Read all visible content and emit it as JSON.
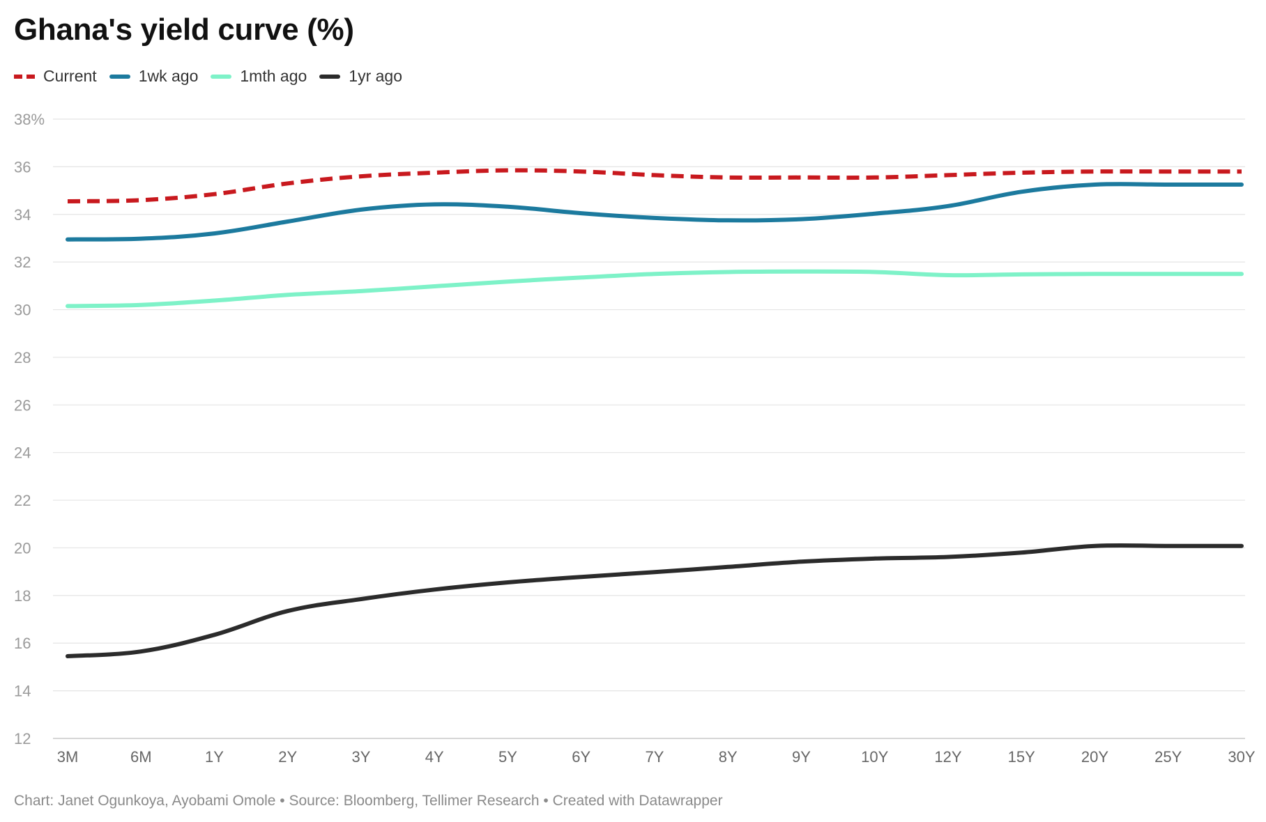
{
  "title": "Ghana's yield curve (%)",
  "legend": [
    {
      "label": "Current",
      "color": "#c8191e",
      "dashed": true
    },
    {
      "label": "1wk ago",
      "color": "#1c7a9e",
      "dashed": false
    },
    {
      "label": "1mth ago",
      "color": "#7ef2c8",
      "dashed": false
    },
    {
      "label": "1yr ago",
      "color": "#2b2b2b",
      "dashed": false
    }
  ],
  "footer": "Chart: Janet Ogunkoya, Ayobami Omole • Source: Bloomberg, Tellimer Research • Created with Datawrapper",
  "chart_data": {
    "type": "line",
    "title": "Ghana's yield curve (%)",
    "categories": [
      "3M",
      "6M",
      "1Y",
      "2Y",
      "3Y",
      "4Y",
      "5Y",
      "6Y",
      "7Y",
      "8Y",
      "9Y",
      "10Y",
      "12Y",
      "15Y",
      "20Y",
      "25Y",
      "30Y"
    ],
    "ylim": [
      12,
      38
    ],
    "yticks": [
      12,
      14,
      16,
      18,
      20,
      22,
      24,
      26,
      28,
      30,
      32,
      34,
      36,
      38
    ],
    "ytick_labels": [
      "12",
      "14",
      "16",
      "18",
      "20",
      "22",
      "24",
      "26",
      "28",
      "30",
      "32",
      "34",
      "36",
      "38%"
    ],
    "grid": "horizontal",
    "legend_position": "top-left",
    "series": [
      {
        "name": "Current",
        "color": "#c8191e",
        "dashed": true,
        "values": [
          34.55,
          34.6,
          34.85,
          35.3,
          35.6,
          35.75,
          35.85,
          35.8,
          35.65,
          35.55,
          35.55,
          35.55,
          35.65,
          35.75,
          35.8,
          35.8,
          35.8
        ]
      },
      {
        "name": "1wk ago",
        "color": "#1c7a9e",
        "dashed": false,
        "values": [
          32.95,
          32.98,
          33.2,
          33.7,
          34.2,
          34.42,
          34.32,
          34.05,
          33.85,
          33.75,
          33.8,
          34.03,
          34.35,
          34.95,
          35.25,
          35.25,
          35.25
        ]
      },
      {
        "name": "1mth ago",
        "color": "#7ef2c8",
        "dashed": false,
        "values": [
          30.15,
          30.2,
          30.38,
          30.62,
          30.78,
          30.98,
          31.18,
          31.35,
          31.5,
          31.58,
          31.6,
          31.58,
          31.45,
          31.48,
          31.5,
          31.5,
          31.5
        ]
      },
      {
        "name": "1yr ago",
        "color": "#2b2b2b",
        "dashed": false,
        "values": [
          15.45,
          15.65,
          16.35,
          17.35,
          17.85,
          18.25,
          18.55,
          18.78,
          18.98,
          19.2,
          19.42,
          19.55,
          19.62,
          19.8,
          20.08,
          20.08,
          20.08
        ]
      }
    ]
  }
}
